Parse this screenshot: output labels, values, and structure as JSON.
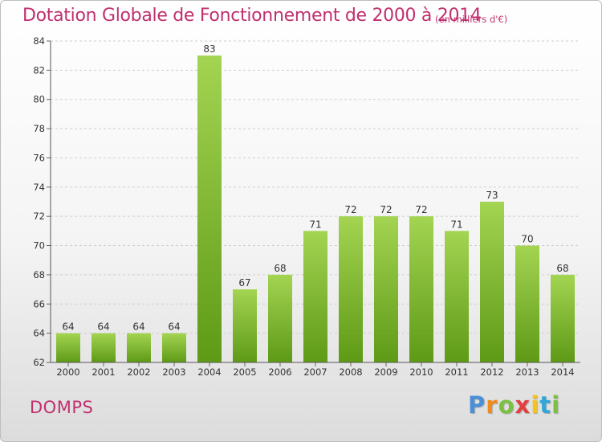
{
  "chart_data": {
    "type": "bar",
    "title": "Dotation Globale de Fonctionnement de 2000 à 2014",
    "subtitle": "(en milliers d'€)",
    "categories": [
      "2000",
      "2001",
      "2002",
      "2003",
      "2004",
      "2005",
      "2006",
      "2007",
      "2008",
      "2009",
      "2010",
      "2011",
      "2012",
      "2013",
      "2014"
    ],
    "values": [
      64,
      64,
      64,
      64,
      83,
      67,
      68,
      71,
      72,
      72,
      72,
      71,
      73,
      70,
      68
    ],
    "ylim": [
      62,
      84
    ],
    "yticks": [
      "62",
      "64",
      "66",
      "68",
      "70",
      "72",
      "74",
      "76",
      "78",
      "80",
      "82",
      "84"
    ],
    "xlabel": "",
    "ylabel": "",
    "bar_color_top": "#a3d452",
    "bar_color_bottom": "#5e9a16"
  },
  "footer": {
    "commune": "DOMPS",
    "brand_letters": [
      "P",
      "r",
      "o",
      "x",
      "i",
      "t",
      "i"
    ],
    "brand_colors": [
      "#4a8fd8",
      "#f08a1c",
      "#7bc043",
      "#e43f3f",
      "#f6c31b",
      "#2fa7d8",
      "#7bc043"
    ]
  }
}
